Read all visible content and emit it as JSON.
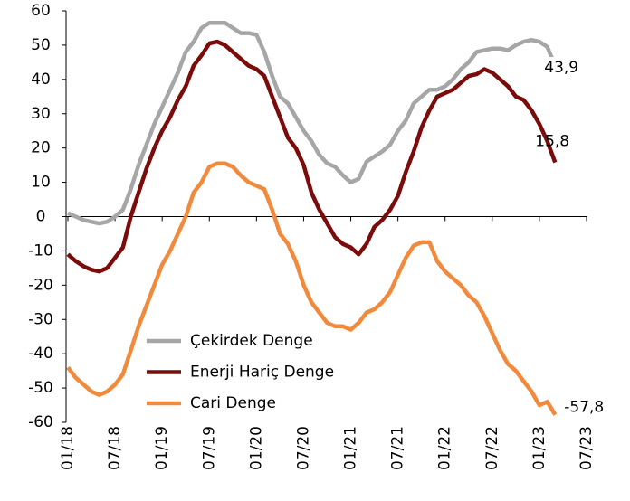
{
  "chart_data": {
    "type": "line",
    "categories": [
      "01/18",
      null,
      null,
      null,
      null,
      null,
      "07/18",
      null,
      null,
      null,
      null,
      null,
      "01/19",
      null,
      null,
      null,
      null,
      null,
      "07/19",
      null,
      null,
      null,
      null,
      null,
      "01/20",
      null,
      null,
      null,
      null,
      null,
      "07/20",
      null,
      null,
      null,
      null,
      null,
      "01/21",
      null,
      null,
      null,
      null,
      null,
      "07/21",
      null,
      null,
      null,
      null,
      null,
      "01/22",
      null,
      null,
      null,
      null,
      null,
      "07/22",
      null,
      null,
      null,
      null,
      null,
      "01/23",
      null,
      null,
      null,
      null,
      null,
      "07/23"
    ],
    "series": [
      {
        "name": "Çekirdek Denge",
        "color": "#a6a6a6",
        "end_label": "43,9",
        "values": [
          1,
          0,
          -1,
          -1.5,
          -2,
          -1.5,
          0,
          2,
          8,
          15,
          21,
          27,
          32,
          37,
          42,
          48,
          51,
          55,
          56.5,
          56.5,
          56.5,
          55,
          53.5,
          53.5,
          53,
          48,
          41,
          35,
          33,
          29,
          25,
          22,
          18,
          15.5,
          14.5,
          12,
          10,
          11,
          16,
          17.5,
          19,
          21,
          25,
          28,
          33,
          35,
          37,
          37,
          38,
          40,
          43,
          45,
          48,
          48.5,
          49,
          49,
          48.5,
          50,
          51,
          51.5,
          51,
          49.5,
          43.9,
          null,
          null,
          null,
          null
        ]
      },
      {
        "name": "Enerji Hariç Denge",
        "color": "#7b0c0c",
        "end_label": "15,8",
        "values": [
          -11,
          -13,
          -14.5,
          -15.5,
          -16,
          -15,
          -12,
          -9,
          0,
          7,
          14,
          20,
          25,
          29,
          34,
          38,
          44,
          47,
          50.5,
          51,
          50,
          48,
          46,
          44,
          43,
          41,
          35,
          29,
          23,
          20,
          15,
          7,
          2,
          -2,
          -6,
          -8,
          -9,
          -11,
          -8,
          -3,
          -1,
          2,
          6,
          13,
          19,
          26,
          31,
          35,
          36,
          37,
          39,
          41,
          41.5,
          43,
          42,
          40,
          38,
          35,
          34,
          31,
          27,
          22,
          15.8,
          null,
          null,
          null,
          null
        ]
      },
      {
        "name": "Cari Denge",
        "color": "#f08a3c",
        "end_label": "-57,8",
        "values": [
          -44,
          -47,
          -49,
          -51,
          -52,
          -51,
          -49,
          -46,
          -39,
          -32,
          -26,
          -20,
          -14,
          -10,
          -5,
          0,
          7,
          10,
          14.5,
          15.5,
          15.5,
          14.5,
          12,
          10,
          9,
          8,
          2,
          -5,
          -8,
          -13,
          -20,
          -25,
          -28,
          -31,
          -32,
          -32,
          -33,
          -31,
          -28,
          -27,
          -25,
          -22,
          -17,
          -12,
          -8.5,
          -7.5,
          -7.5,
          -13,
          -16,
          -18,
          -20,
          -23,
          -25,
          -29,
          -34,
          -39,
          -43,
          -45,
          -48,
          -51,
          -55,
          -54,
          -57.8,
          null,
          null,
          null,
          null
        ]
      }
    ],
    "ylim": [
      -60,
      60
    ],
    "yticks": [
      -60,
      -50,
      -40,
      -30,
      -20,
      -10,
      0,
      10,
      20,
      30,
      40,
      50,
      60
    ]
  }
}
